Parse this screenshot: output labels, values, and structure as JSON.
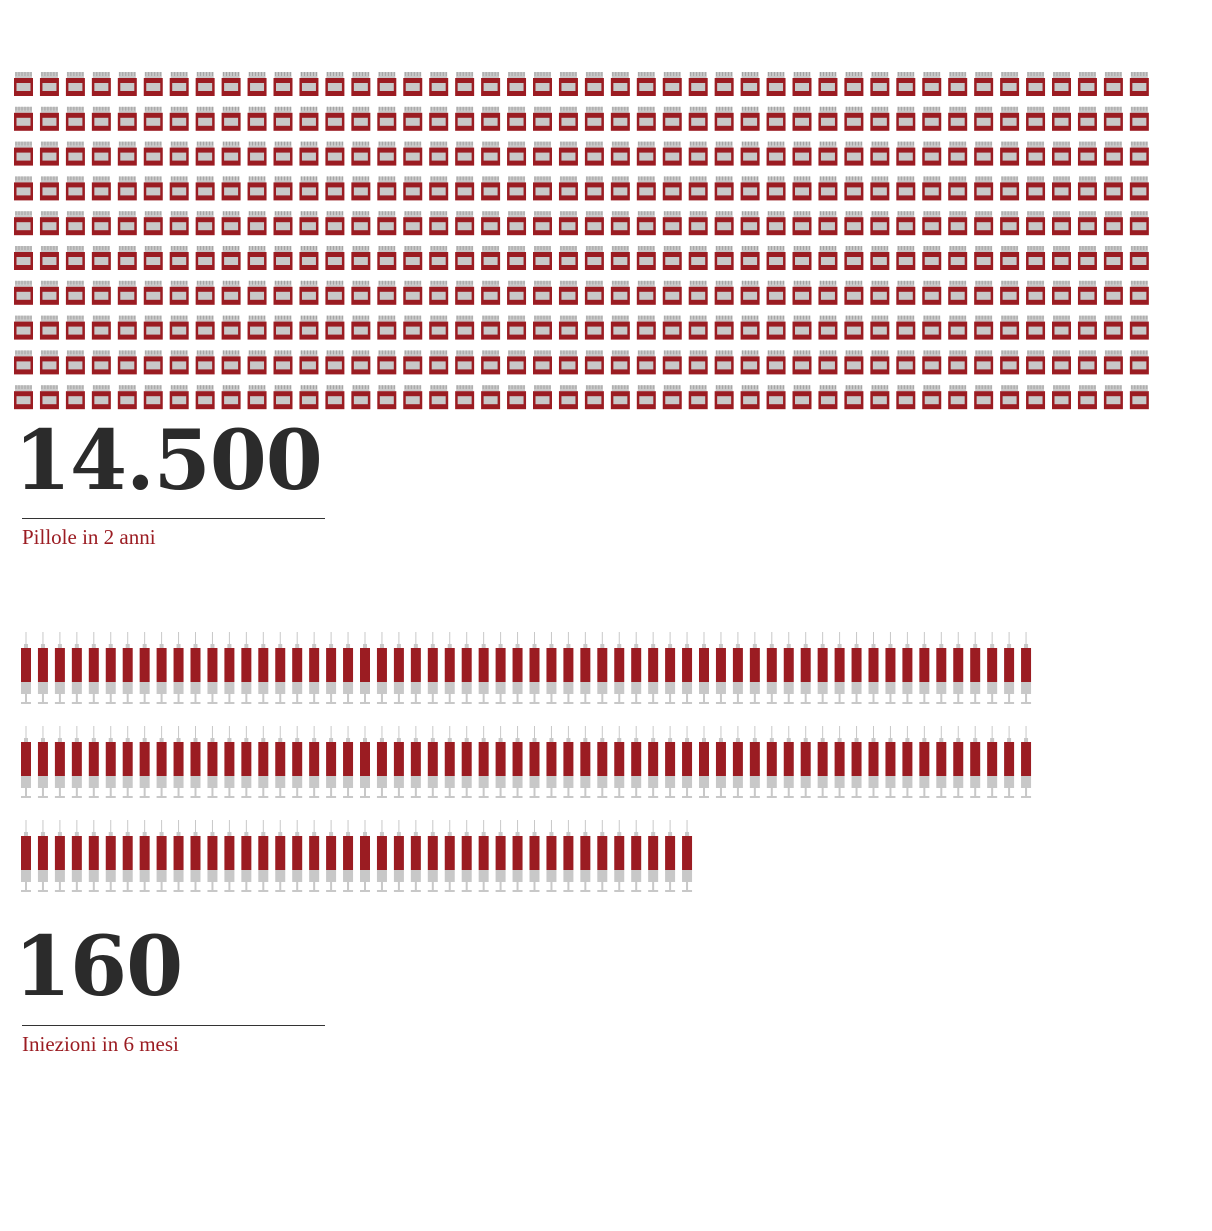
{
  "colors": {
    "accent": "#9b1c22",
    "neutral": "#c8c8c8",
    "number": "#2b2b2b"
  },
  "pills": {
    "number": "14.500",
    "caption": "Pillole in 2 anni",
    "icon": "pill-bottle-icon"
  },
  "injections": {
    "number": "160",
    "caption": "Iniezioni in 6 mesi",
    "icon": "syringe-icon"
  },
  "chart_data": {
    "type": "pictogram",
    "series": [
      {
        "name": "Pillole in 2 anni",
        "value": 14500,
        "icons_shown": 440,
        "icon": "pill-bottle-icon"
      },
      {
        "name": "Iniezioni in 6 mesi",
        "value": 160,
        "icons_shown": 160,
        "icon": "syringe-icon"
      }
    ]
  }
}
